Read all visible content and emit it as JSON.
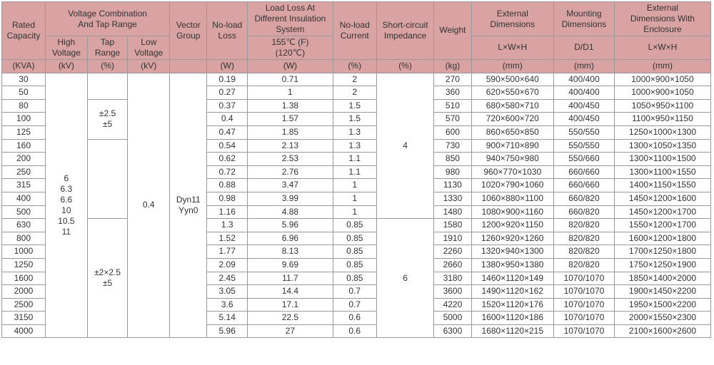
{
  "cols": {
    "cap": 56,
    "hv": 54,
    "tap": 52,
    "lv": 54,
    "vg": 48,
    "nll": 52,
    "ll": 110,
    "nlc": 56,
    "sci": 74,
    "wt": 48,
    "ed": 106,
    "md": 78,
    "edw": 124
  },
  "headers": {
    "rated_cap": "Rated\nCapacity",
    "volt_combo": "Voltage Combination\nAnd Tap Range",
    "vector": "Vector\nGroup",
    "no_load_loss": "No-load\nLoss",
    "load_loss": "Load Loss At\nDifferent Insulation\nSystem",
    "no_load_current": "No-load\nCurrent",
    "short_circuit": "Short-circuit\nImpedance",
    "weight": "Weight",
    "ext_dims": "External\nDimensions",
    "mount_dims": "Mounting\nDimensions",
    "ext_dims_enc": "External\nDimensions With\nEnclosure",
    "hv": "High\nVoltage",
    "tap": "Tap\nRange",
    "lv": "Low\nVoltage",
    "temp": "155℃ (F)\n(120℃)",
    "lwh": "L×W×H",
    "dd1": "D/D1"
  },
  "units": {
    "cap": "(KVA)",
    "hv": "(kV)",
    "tap": "(%)",
    "lv": "(kV)",
    "nll": "(W)",
    "ll": "(W)",
    "nlc": "(%)",
    "sci": "(%)",
    "wt": "(kg)",
    "ed": "(mm)",
    "md": "(mm)",
    "edw": "(mm)"
  },
  "hv_values": "6\n6.3\n6.6\n10\n10.5\n11",
  "tap1": "±2.5\n±5",
  "tap2": "±2×2.5\n±5",
  "lv_value": "0.4",
  "vector_value": "Dyn11\nYyn0",
  "sci1": "4",
  "sci2": "6",
  "rows": [
    {
      "cap": "30",
      "nll": "0.19",
      "ll": "0.71",
      "nlc": "2",
      "wt": "270",
      "ed": "590×500×640",
      "md": "400/400",
      "edw": "1000×900×1050"
    },
    {
      "cap": "50",
      "nll": "0.27",
      "ll": "1",
      "nlc": "2",
      "wt": "360",
      "ed": "620×550×670",
      "md": "400/400",
      "edw": "1000×900×1050"
    },
    {
      "cap": "80",
      "nll": "0.37",
      "ll": "1.38",
      "nlc": "1.5",
      "wt": "510",
      "ed": "680×580×710",
      "md": "400/450",
      "edw": "1050×950×1100"
    },
    {
      "cap": "100",
      "nll": "0.4",
      "ll": "1.57",
      "nlc": "1.5",
      "wt": "570",
      "ed": "720×600×720",
      "md": "400/450",
      "edw": "1100×950×1150"
    },
    {
      "cap": "125",
      "nll": "0.47",
      "ll": "1.85",
      "nlc": "1.3",
      "wt": "600",
      "ed": "860×650×850",
      "md": "550/550",
      "edw": "1250×1000×1300"
    },
    {
      "cap": "160",
      "nll": "0.54",
      "ll": "2.13",
      "nlc": "1.3",
      "wt": "730",
      "ed": "900×710×890",
      "md": "550/550",
      "edw": "1300×1050×1350"
    },
    {
      "cap": "200",
      "nll": "0.62",
      "ll": "2.53",
      "nlc": "1.1",
      "wt": "850",
      "ed": "940×750×980",
      "md": "550/660",
      "edw": "1300×1100×1500"
    },
    {
      "cap": "250",
      "nll": "0.72",
      "ll": "2.76",
      "nlc": "1.1",
      "wt": "980",
      "ed": "960×770×1030",
      "md": "660/660",
      "edw": "1300×1100×1550"
    },
    {
      "cap": "315",
      "nll": "0.88",
      "ll": "3.47",
      "nlc": "1",
      "wt": "1130",
      "ed": "1020×790×1060",
      "md": "660/660",
      "edw": "1400×1150×1550"
    },
    {
      "cap": "400",
      "nll": "0.98",
      "ll": "3.99",
      "nlc": "1",
      "wt": "1330",
      "ed": "1060×880×1100",
      "md": "660/820",
      "edw": "1450×1200×1600"
    },
    {
      "cap": "500",
      "nll": "1.16",
      "ll": "4.88",
      "nlc": "1",
      "wt": "1480",
      "ed": "1080×900×1160",
      "md": "660/820",
      "edw": "1450×1200×1700"
    },
    {
      "cap": "630",
      "nll": "1.3",
      "ll": "5.96",
      "nlc": "0.85",
      "wt": "1580",
      "ed": "1200×920×1150",
      "md": "820/820",
      "edw": "1550×1200×1700"
    },
    {
      "cap": "800",
      "nll": "1.52",
      "ll": "6.96",
      "nlc": "0.85",
      "wt": "1910",
      "ed": "1260×920×1260",
      "md": "820/820",
      "edw": "1600×1200×1800"
    },
    {
      "cap": "1000",
      "nll": "1.77",
      "ll": "8.13",
      "nlc": "0.85",
      "wt": "2260",
      "ed": "1320×940×1300",
      "md": "820/820",
      "edw": "1700×1250×1800"
    },
    {
      "cap": "1250",
      "nll": "2.09",
      "ll": "9.69",
      "nlc": "0.85",
      "wt": "2660",
      "ed": "1380×950×1380",
      "md": "820/820",
      "edw": "1750×1250×1900"
    },
    {
      "cap": "1600",
      "nll": "2.45",
      "ll": "11.7",
      "nlc": "0.85",
      "wt": "3180",
      "ed": "1460×1120×149",
      "md": "1070/1070",
      "edw": "1850×1400×2000"
    },
    {
      "cap": "2000",
      "nll": "3.05",
      "ll": "14.4",
      "nlc": "0.7",
      "wt": "3600",
      "ed": "1490×1120×162",
      "md": "1070/1070",
      "edw": "1900×1450×2200"
    },
    {
      "cap": "2500",
      "nll": "3.6",
      "ll": "17.1",
      "nlc": "0.7",
      "wt": "4220",
      "ed": "1520×1120×176",
      "md": "1070/1070",
      "edw": "1950×1500×2200"
    },
    {
      "cap": "3150",
      "nll": "5.14",
      "ll": "22.5",
      "nlc": "0.6",
      "wt": "5000",
      "ed": "1600×1120×186",
      "md": "1070/1070",
      "edw": "2000×1550×2300"
    },
    {
      "cap": "4000",
      "nll": "5.96",
      "ll": "27",
      "nlc": "0.6",
      "wt": "6300",
      "ed": "1680×1120×215",
      "md": "1070/1070",
      "edw": "2100×1600×2600"
    }
  ]
}
